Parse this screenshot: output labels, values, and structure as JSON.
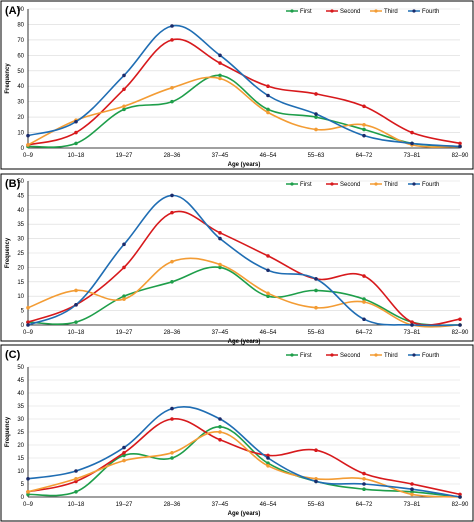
{
  "colors": {
    "first": "#1e9e4a",
    "second": "#d7191c",
    "third": "#f39c34",
    "fourth": "#1f6db3",
    "marker": "#1a2b6b"
  },
  "chart_data": [
    {
      "type": "line",
      "panel_label": "(A)",
      "xlabel": "Age (years)",
      "ylabel": "Frequency",
      "categories": [
        "0–9",
        "10–18",
        "19–27",
        "28–36",
        "37–45",
        "46–54",
        "55–63",
        "64–72",
        "73–81",
        "82–90"
      ],
      "ylim": [
        0,
        90
      ],
      "yticks": [
        0,
        10,
        20,
        30,
        40,
        50,
        60,
        70,
        80,
        90
      ],
      "grid": "horizontal",
      "legend": "top-right",
      "series": [
        {
          "name": "First",
          "color_key": "first",
          "values": [
            1,
            3,
            25,
            30,
            47,
            25,
            20,
            12,
            3,
            1
          ]
        },
        {
          "name": "Second",
          "color_key": "second",
          "values": [
            2,
            10,
            38,
            70,
            55,
            40,
            35,
            27,
            10,
            3
          ]
        },
        {
          "name": "Third",
          "color_key": "third",
          "values": [
            2,
            18,
            27,
            39,
            45,
            23,
            12,
            15,
            2,
            1
          ]
        },
        {
          "name": "Fourth",
          "color_key": "fourth",
          "values": [
            8,
            17,
            47,
            79,
            60,
            34,
            22,
            8,
            3,
            1
          ]
        }
      ]
    },
    {
      "type": "line",
      "panel_label": "(B)",
      "xlabel": "Age (years)",
      "ylabel": "Frequency",
      "categories": [
        "0–9",
        "10–18",
        "19–27",
        "28–36",
        "37–45",
        "46–54",
        "55–63",
        "64–72",
        "73–81",
        "82–90"
      ],
      "ylim": [
        0,
        50
      ],
      "yticks": [
        0,
        5,
        10,
        15,
        20,
        25,
        30,
        35,
        40,
        45,
        50
      ],
      "grid": "horizontal",
      "legend": "top-right",
      "series": [
        {
          "name": "First",
          "color_key": "first",
          "values": [
            1,
            1,
            10,
            15,
            20,
            10,
            12,
            9,
            1,
            0
          ]
        },
        {
          "name": "Second",
          "color_key": "second",
          "values": [
            1,
            7,
            20,
            39,
            32,
            24,
            16,
            17,
            1,
            2
          ]
        },
        {
          "name": "Third",
          "color_key": "third",
          "values": [
            6,
            12,
            9,
            22,
            21,
            11,
            6,
            8,
            0,
            0
          ]
        },
        {
          "name": "Fourth",
          "color_key": "fourth",
          "values": [
            0,
            7,
            28,
            45,
            30,
            19,
            16,
            2,
            0,
            0
          ]
        }
      ]
    },
    {
      "type": "line",
      "panel_label": "(C)",
      "xlabel": "Age (years)",
      "ylabel": "Frequency",
      "categories": [
        "0–9",
        "10–18",
        "19–27",
        "28–36",
        "37–45",
        "46–54",
        "55–63",
        "64–72",
        "73–81",
        "82–90"
      ],
      "ylim": [
        0,
        50
      ],
      "yticks": [
        0,
        5,
        10,
        15,
        20,
        25,
        30,
        35,
        40,
        45,
        50
      ],
      "grid": "horizontal",
      "legend": "top-right",
      "series": [
        {
          "name": "First",
          "color_key": "first",
          "values": [
            1,
            2,
            16,
            15,
            27,
            13,
            6,
            3,
            2,
            0
          ]
        },
        {
          "name": "Second",
          "color_key": "second",
          "values": [
            2,
            6,
            17,
            30,
            22,
            16,
            18,
            9,
            5,
            1
          ]
        },
        {
          "name": "Third",
          "color_key": "third",
          "values": [
            2,
            7,
            14,
            17,
            25,
            12,
            7,
            7,
            1,
            0
          ]
        },
        {
          "name": "Fourth",
          "color_key": "fourth",
          "values": [
            7,
            10,
            19,
            34,
            30,
            15,
            6,
            5,
            3,
            0
          ]
        }
      ]
    }
  ]
}
